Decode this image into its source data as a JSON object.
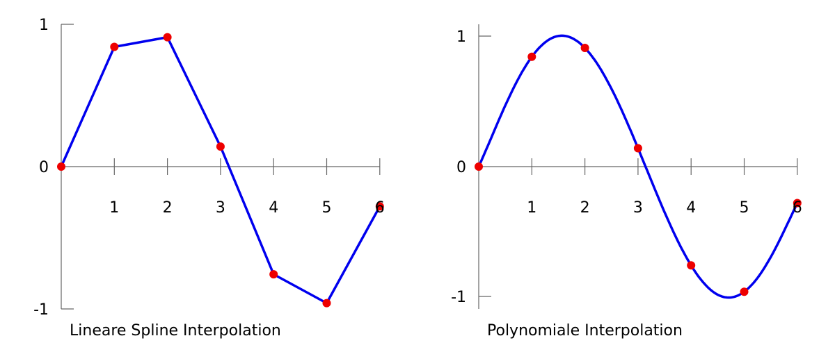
{
  "chart_data": [
    {
      "type": "line",
      "title": "Lineare Spline Interpolation",
      "xlabel": "",
      "ylabel": "",
      "x_ticks": [
        "1",
        "2",
        "3",
        "4",
        "5",
        "6"
      ],
      "y_ticks": [
        "1",
        "0",
        "-1"
      ],
      "xlim": [
        0,
        6
      ],
      "ylim": [
        -1,
        1
      ],
      "grid": false,
      "legend": "none",
      "interpolation": "linear",
      "points": {
        "x": [
          0,
          1,
          2,
          3,
          4,
          5,
          6
        ],
        "y": [
          0,
          0.8415,
          0.9093,
          0.1411,
          -0.7568,
          -0.9589,
          -0.2794
        ]
      },
      "colors": {
        "curve": "#0000ee",
        "points": "#ee0000",
        "axis": "#666666"
      }
    },
    {
      "type": "line",
      "title": "Polynomiale Interpolation",
      "xlabel": "",
      "ylabel": "",
      "x_ticks": [
        "1",
        "2",
        "3",
        "4",
        "5",
        "6"
      ],
      "y_ticks": [
        "1",
        "0",
        "-1"
      ],
      "xlim": [
        0,
        6
      ],
      "ylim": [
        -1,
        1
      ],
      "grid": false,
      "legend": "none",
      "interpolation": "polynomial",
      "points": {
        "x": [
          0,
          1,
          2,
          3,
          4,
          5,
          6
        ],
        "y": [
          0,
          0.8415,
          0.9093,
          0.1411,
          -0.7568,
          -0.9589,
          -0.2794
        ]
      },
      "colors": {
        "curve": "#0000ee",
        "points": "#ee0000",
        "axis": "#666666"
      }
    }
  ]
}
